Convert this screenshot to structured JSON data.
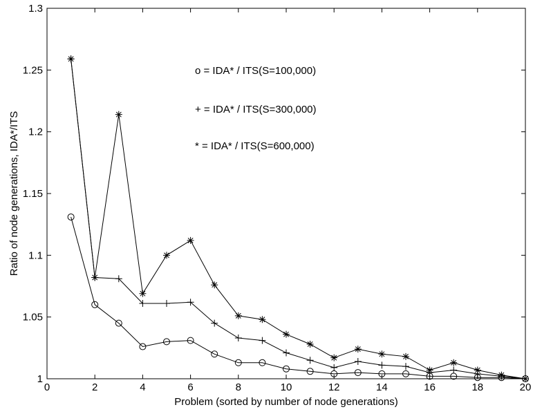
{
  "chart_data": {
    "type": "line",
    "title": "",
    "xlabel": "Problem (sorted by number of node generations)",
    "ylabel": "Ratio of node generations, IDA*/ITS",
    "xlim": [
      0,
      20
    ],
    "ylim": [
      1,
      1.3
    ],
    "xticks": [
      "0",
      "2",
      "4",
      "6",
      "8",
      "10",
      "12",
      "14",
      "16",
      "18",
      "20"
    ],
    "yticks": [
      "1",
      "1.05",
      "1.1",
      "1.15",
      "1.2",
      "1.25",
      "1.3"
    ],
    "grid": false,
    "x": [
      1,
      2,
      3,
      4,
      5,
      6,
      7,
      8,
      9,
      10,
      11,
      12,
      13,
      14,
      15,
      16,
      17,
      18,
      19,
      20
    ],
    "series": [
      {
        "marker": "circle",
        "color": "#000000",
        "values": [
          1.131,
          1.06,
          1.045,
          1.026,
          1.03,
          1.031,
          1.02,
          1.013,
          1.013,
          1.008,
          1.006,
          1.004,
          1.005,
          1.004,
          1.004,
          1.002,
          1.002,
          1.001,
          1.001,
          1.0
        ]
      },
      {
        "marker": "plus",
        "color": "#000000",
        "values": [
          1.259,
          1.082,
          1.081,
          1.061,
          1.061,
          1.062,
          1.045,
          1.033,
          1.031,
          1.021,
          1.015,
          1.009,
          1.014,
          1.011,
          1.01,
          1.005,
          1.007,
          1.004,
          1.002,
          1.0
        ]
      },
      {
        "marker": "asterisk",
        "color": "#000000",
        "values": [
          1.259,
          1.082,
          1.214,
          1.069,
          1.1,
          1.112,
          1.076,
          1.051,
          1.048,
          1.036,
          1.028,
          1.017,
          1.024,
          1.02,
          1.018,
          1.007,
          1.013,
          1.007,
          1.003,
          1.0
        ]
      }
    ],
    "annotations": [
      "o = IDA* / ITS(S=100,000)",
      "+ = IDA* / ITS(S=300,000)",
      "* = IDA* / ITS(S=600,000)"
    ]
  }
}
